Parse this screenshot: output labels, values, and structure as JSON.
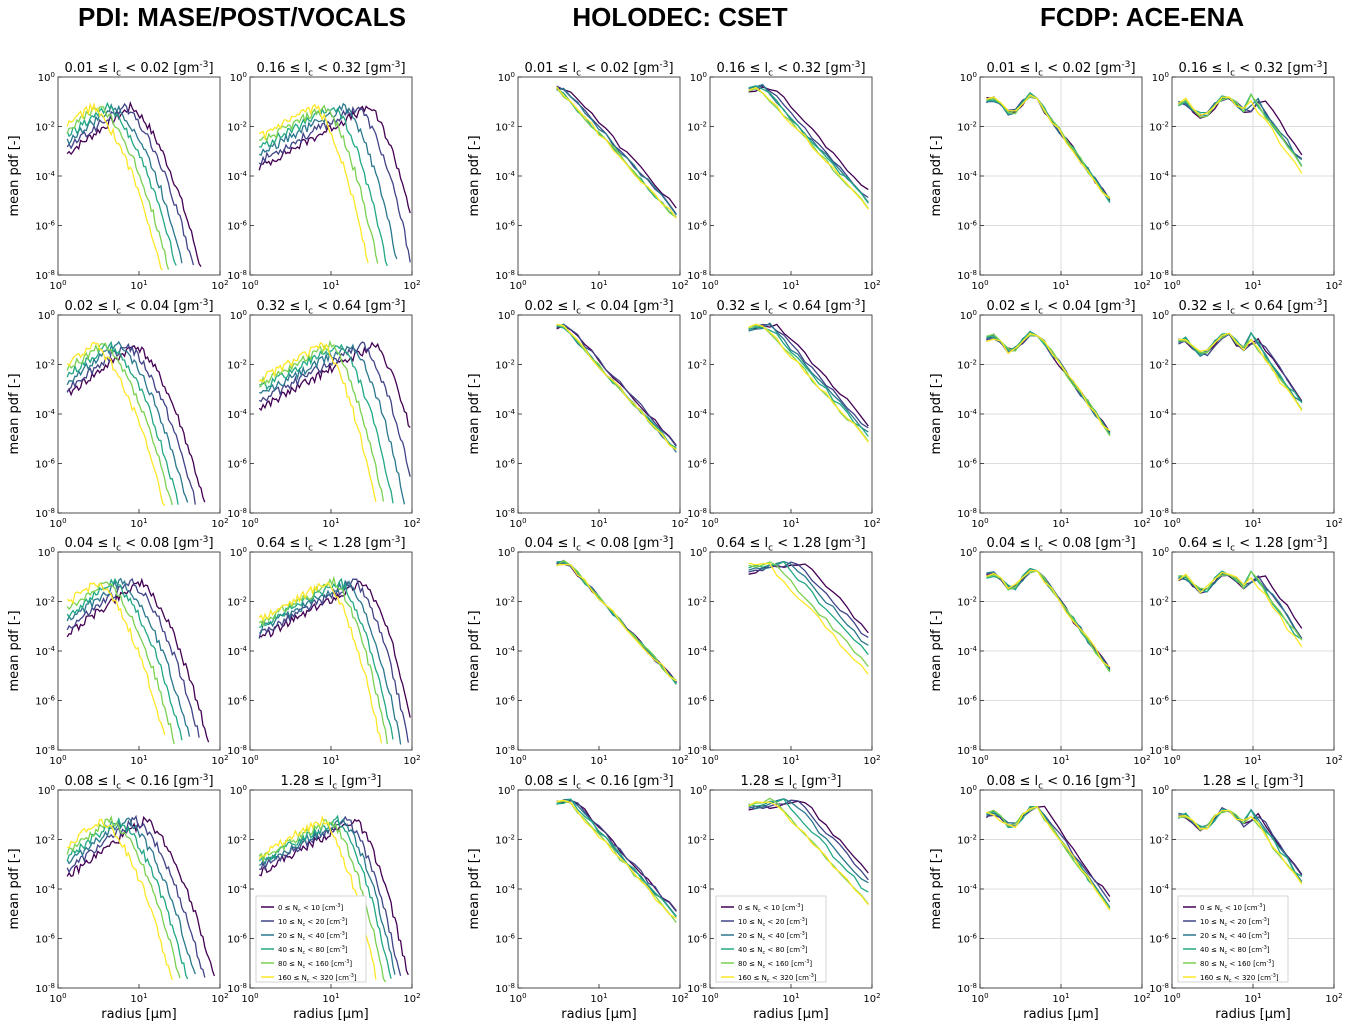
{
  "column_titles": [
    "PDI: MASE/POST/VOCALS",
    "HOLODEC: CSET",
    "FCDP: ACE-ENA"
  ],
  "colors": [
    "#440154",
    "#414487",
    "#2a788e",
    "#22a884",
    "#7ad151",
    "#fde725"
  ],
  "chart_data": {
    "type": "line",
    "xscale": "log",
    "yscale": "log",
    "xlim": [
      1,
      100
    ],
    "ylim": [
      1e-08,
      1
    ],
    "xlabel": "radius [μm]",
    "ylabel": "mean pdf [-]",
    "x_tick_labels": [
      "10^0",
      "10^1",
      "10^2"
    ],
    "y_tick_labels": [
      "10^-8",
      "10^-6",
      "10^-4",
      "10^-2",
      "10^0"
    ],
    "lwc_bin_labels": [
      "0.01 ≤ l_c < 0.02 [gm^-3]",
      "0.16 ≤ l_c < 0.32 [gm^-3]",
      "0.02 ≤ l_c < 0.04 [gm^-3]",
      "0.32 ≤ l_c < 0.64 [gm^-3]",
      "0.04 ≤ l_c < 0.08 [gm^-3]",
      "0.64 ≤ l_c < 1.28 [gm^-3]",
      "0.08 ≤ l_c < 0.16 [gm^-3]",
      "1.28 ≤ l_c [gm^-3]"
    ],
    "legend_placement": "lower-left",
    "series_names": [
      "0 ≤ N_c < 10 [cm^-3]",
      "10 ≤ N_c < 20 [cm^-3]",
      "20 ≤ N_c < 40 [cm^-3]",
      "40 ≤ N_c < 80 [cm^-3]",
      "80 ≤ N_c < 160 [cm^-3]",
      "160 ≤ N_c < 320 [cm^-3]"
    ],
    "instruments": [
      {
        "name": "PDI: MASE/POST/VOCALS",
        "shape": "smooth",
        "peak_radius": [
          [
            8,
            6.5,
            5,
            4,
            3.2,
            2.6
          ],
          [
            30,
            22,
            15,
            11,
            8.5,
            6.5
          ],
          [
            9,
            7,
            5.5,
            4.3,
            3.5,
            2.8
          ],
          [
            35,
            25,
            18,
            13,
            10,
            8
          ],
          [
            10,
            8,
            6,
            4.8,
            3.8,
            3
          ],
          [
            25,
            20,
            16,
            13,
            11,
            9
          ],
          [
            12,
            9,
            7,
            5.5,
            4.5,
            3.5
          ],
          [
            20,
            16,
            14,
            12,
            10,
            8
          ]
        ]
      },
      {
        "name": "HOLODEC: CSET",
        "shape": "decreasing",
        "peak_radius": [
          [
            4,
            3.5,
            3.5,
            3,
            3,
            3
          ],
          [
            6,
            5,
            4.5,
            4.5,
            4,
            4
          ],
          [
            4,
            4,
            3.5,
            3.5,
            3.5,
            3.5
          ],
          [
            7,
            6,
            5.5,
            5,
            4.5,
            4.5
          ],
          [
            4,
            4,
            4,
            4,
            4,
            4
          ],
          [
            15,
            12,
            10,
            8,
            6,
            5
          ],
          [
            5,
            5,
            4.5,
            4.5,
            4,
            4
          ],
          [
            14,
            12,
            10,
            8,
            6,
            6
          ]
        ]
      },
      {
        "name": "FCDP: ACE-ENA",
        "shape": "multimodal",
        "peak_radius": [
          [
            4.5,
            4.5,
            4.5,
            4.5,
            4.5,
            4.5
          ],
          [
            12,
            10,
            10,
            9,
            9,
            8
          ],
          [
            5,
            5,
            5,
            5,
            5,
            5
          ],
          [
            10,
            10,
            9,
            9,
            8,
            8
          ],
          [
            5,
            5,
            5,
            5,
            5,
            5
          ],
          [
            12,
            10,
            10,
            9,
            9,
            8
          ],
          [
            6,
            5.5,
            5,
            5,
            5,
            5
          ],
          [
            10,
            10,
            9,
            9,
            8,
            8
          ]
        ]
      }
    ]
  }
}
